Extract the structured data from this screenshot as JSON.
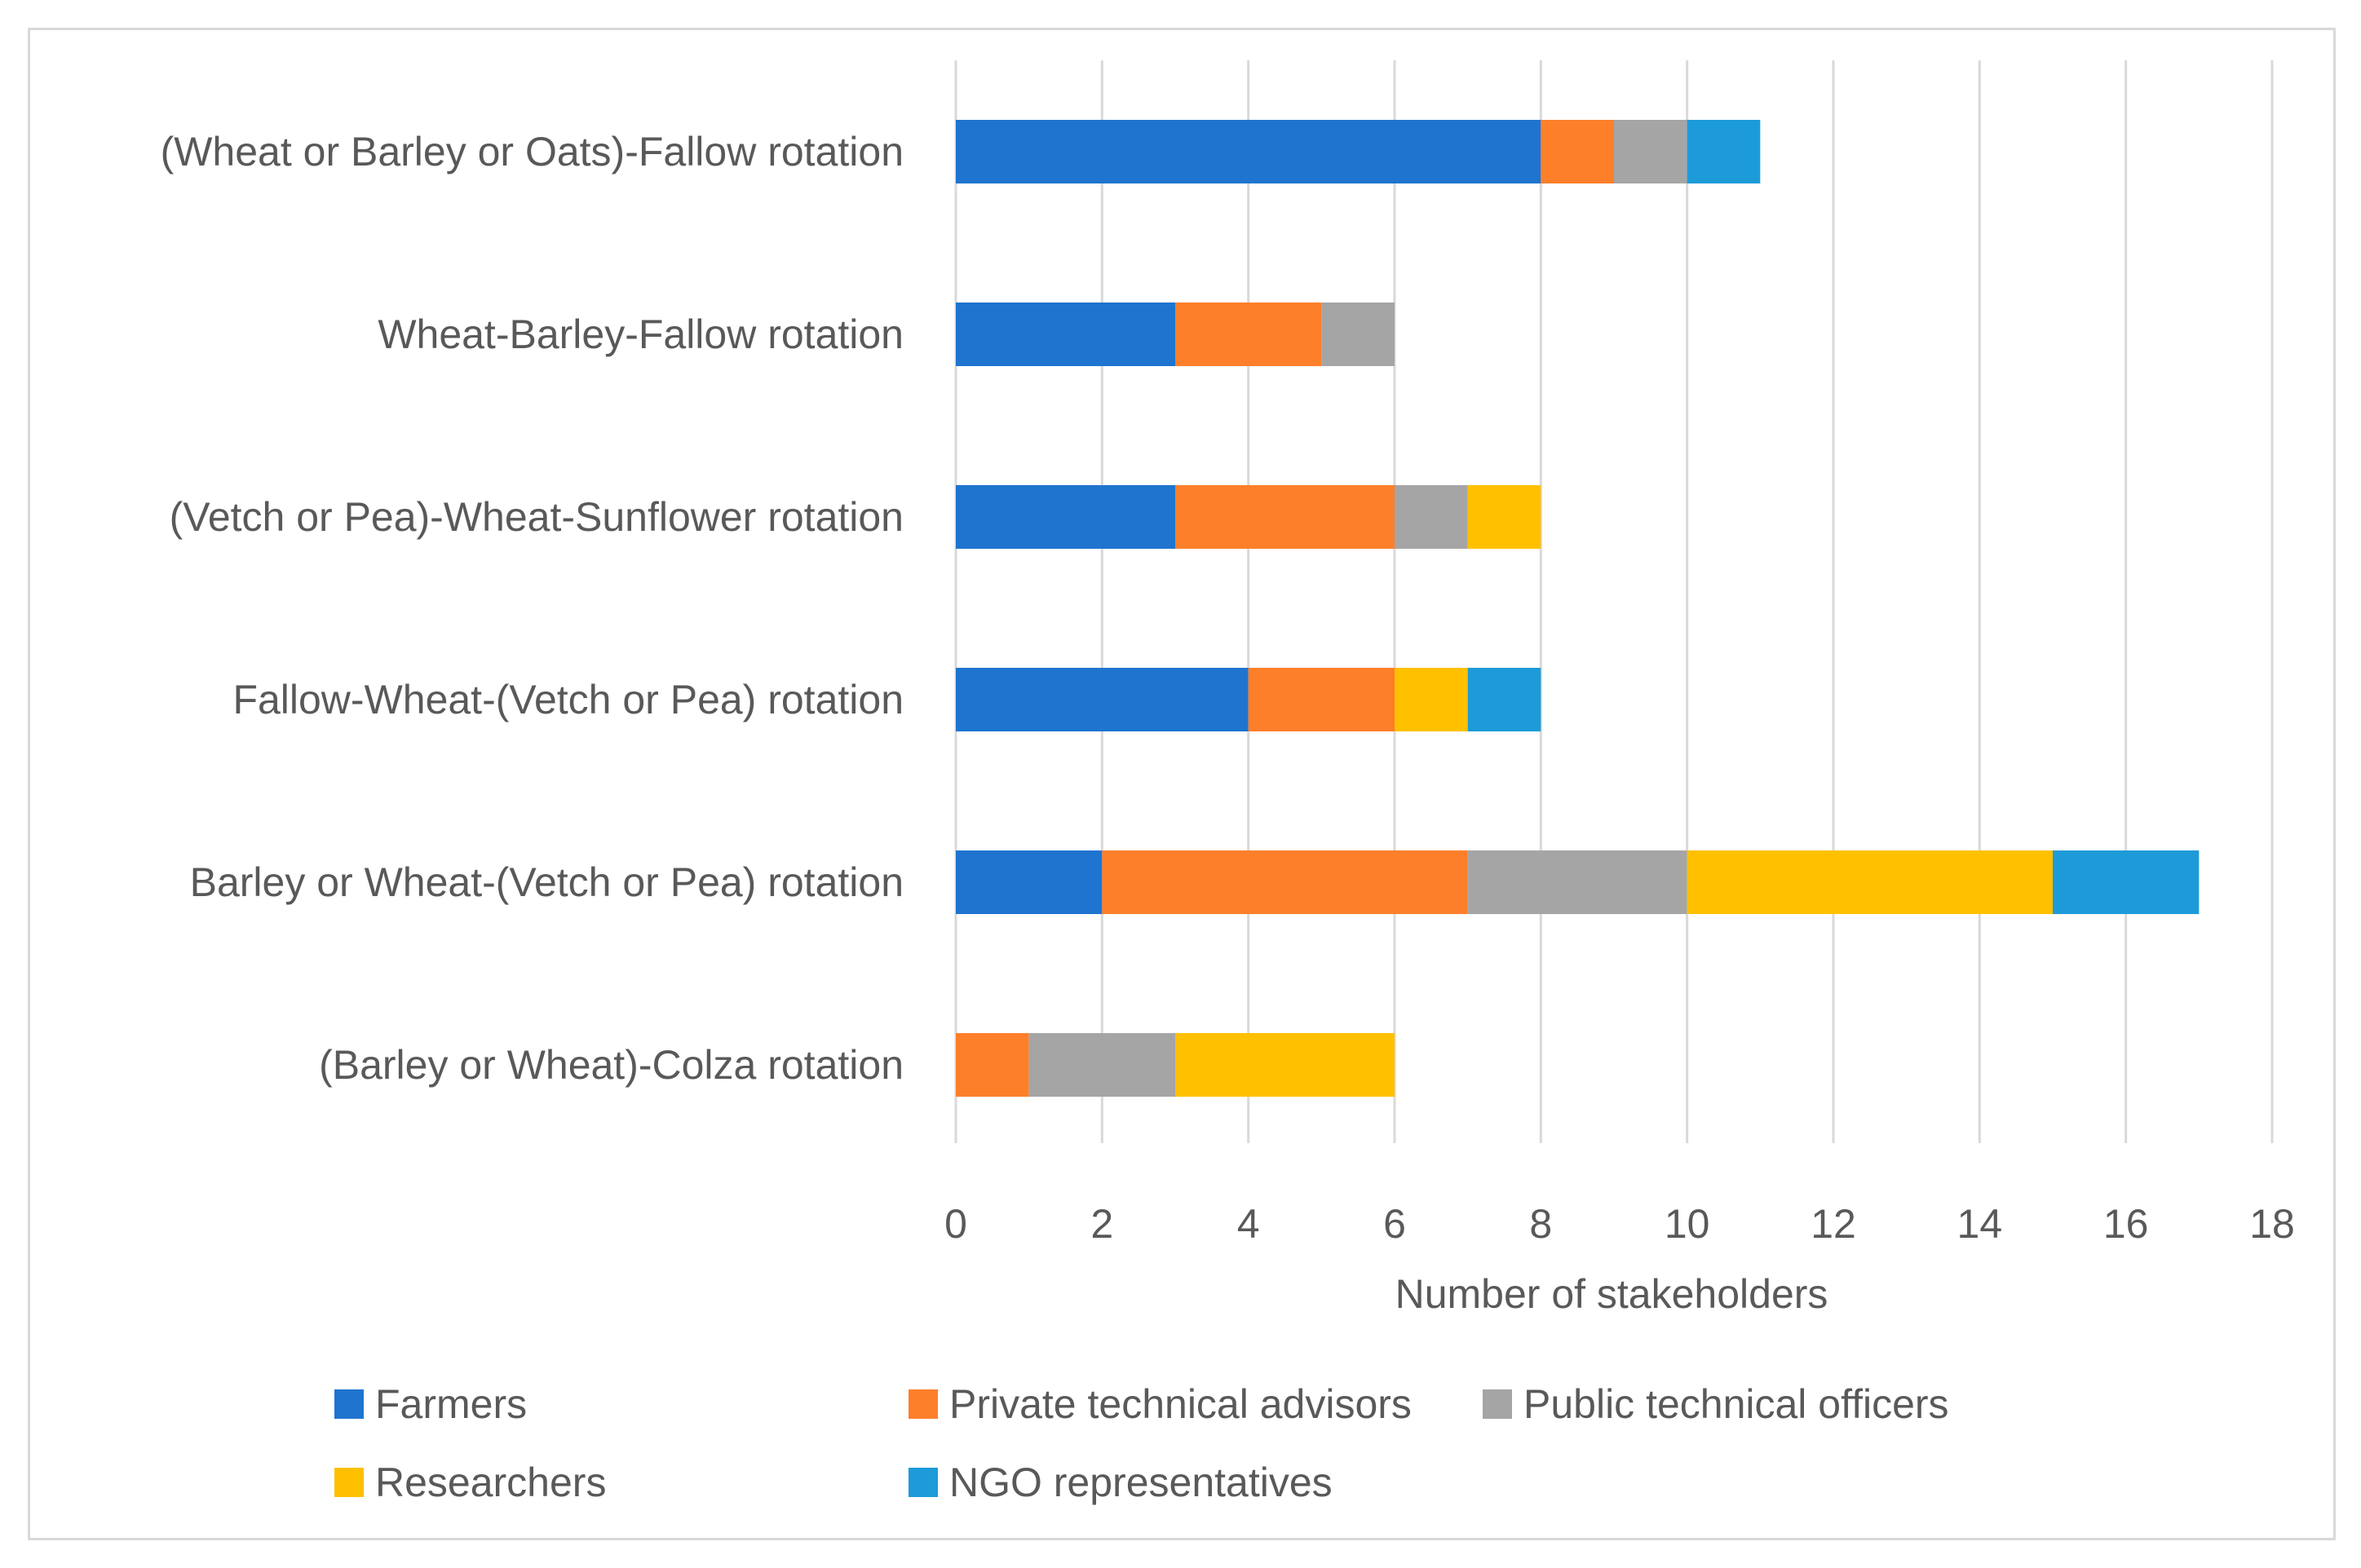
{
  "chart_data": {
    "type": "bar",
    "orientation": "horizontal",
    "stacked": true,
    "title": "",
    "xlabel": "Number of stakeholders",
    "ylabel": "",
    "xlim": [
      0,
      18
    ],
    "x_ticks": [
      0,
      2,
      4,
      6,
      8,
      10,
      12,
      14,
      16,
      18
    ],
    "grid": true,
    "legend_position": "bottom",
    "categories": [
      "(Wheat or Barley or Oats)-Fallow rotation",
      "Wheat-Barley-Fallow rotation",
      "(Vetch or Pea)-Wheat-Sunflower rotation",
      "Fallow-Wheat-(Vetch or Pea) rotation",
      "Barley or Wheat-(Vetch or Pea) rotation",
      "(Barley or Wheat)-Colza rotation"
    ],
    "series": [
      {
        "name": "Farmers",
        "color": "#1f74cf",
        "values": [
          8,
          3,
          3,
          4,
          2,
          0
        ]
      },
      {
        "name": "Private technical advisors",
        "color": "#fd7f2a",
        "values": [
          1,
          2,
          3,
          2,
          5,
          1
        ]
      },
      {
        "name": "Public technical officers",
        "color": "#a5a5a5",
        "values": [
          1,
          1,
          1,
          0,
          3,
          2
        ]
      },
      {
        "name": "Researchers",
        "color": "#ffc000",
        "values": [
          0,
          0,
          1,
          1,
          5,
          3
        ]
      },
      {
        "name": "NGO representatives",
        "color": "#1d9bd8",
        "values": [
          1,
          0,
          0,
          1,
          2,
          0
        ]
      }
    ]
  }
}
